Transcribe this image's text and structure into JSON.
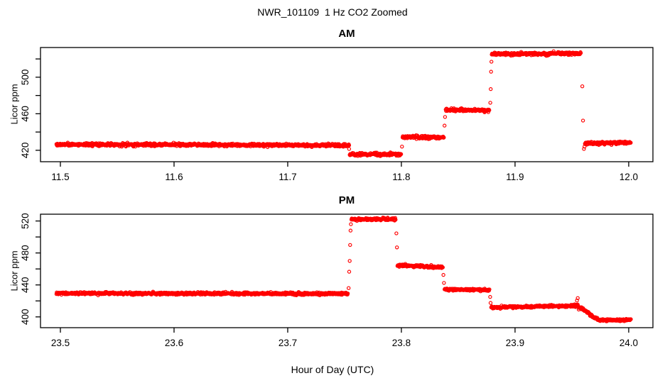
{
  "chart_data": {
    "type": "scatter",
    "title": "NWR_101109  1 Hz CO2 Zoomed",
    "xlabel": "Hour of Day (UTC)",
    "ylabel": "Licor ppm",
    "marker": "open-circle",
    "marker_radius_px": 2.1,
    "point_color": "#FF0000",
    "axis_color": "#000000",
    "sample_rate_hz": 1,
    "noise_sd_ppm": 0.75,
    "panels": [
      {
        "id": "AM",
        "title": "AM",
        "xlim": [
          11.4825,
          12.0213
        ],
        "ylim": [
          407.5,
          532.5
        ],
        "xticks": [
          {
            "v": 11.5,
            "label": "11.5"
          },
          {
            "v": 11.6,
            "label": "11.6"
          },
          {
            "v": 11.7,
            "label": "11.7"
          },
          {
            "v": 11.8,
            "label": "11.8"
          },
          {
            "v": 11.9,
            "label": "11.9"
          },
          {
            "v": 12.0,
            "label": "12.0"
          }
        ],
        "yticks": [
          {
            "v": 420,
            "label": "420"
          },
          {
            "v": 440
          },
          {
            "v": 460,
            "label": "460"
          },
          {
            "v": 480
          },
          {
            "v": 500,
            "label": "500"
          },
          {
            "v": 520
          }
        ],
        "segments": [
          {
            "x0": 11.4965,
            "x1": 11.754,
            "y0": 426.5,
            "y1": 425.5
          },
          {
            "x0": 11.7545,
            "x1": 11.8,
            "y0": 415.5,
            "y1": 415.5
          },
          {
            "x0": 11.801,
            "x1": 11.8375,
            "y0": 434.5,
            "y1": 434.0
          },
          {
            "x0": 11.839,
            "x1": 11.8775,
            "y0": 464.5,
            "y1": 463.5
          },
          {
            "x0": 11.8795,
            "x1": 11.958,
            "y0": 525.5,
            "y1": 526.0
          },
          {
            "x0": 11.9615,
            "x1": 12.002,
            "y0": 427.5,
            "y1": 428.5
          }
        ],
        "transition_points": [
          [
            11.754,
            421.5
          ],
          [
            11.8005,
            424.0
          ],
          [
            11.838,
            447.0
          ],
          [
            11.8384,
            456.5
          ],
          [
            11.8782,
            472.0
          ],
          [
            11.8786,
            487.0
          ],
          [
            11.8789,
            506.0
          ],
          [
            11.8792,
            517.0
          ],
          [
            11.9592,
            490.0
          ],
          [
            11.9598,
            452.5
          ],
          [
            11.9606,
            421.5
          ],
          [
            11.9611,
            424.0
          ]
        ]
      },
      {
        "id": "PM",
        "title": "PM",
        "xlim": [
          23.4825,
          24.0213
        ],
        "ylim": [
          386.5,
          528.5
        ],
        "xticks": [
          {
            "v": 23.5,
            "label": "23.5"
          },
          {
            "v": 23.6,
            "label": "23.6"
          },
          {
            "v": 23.7,
            "label": "23.7"
          },
          {
            "v": 23.8,
            "label": "23.8"
          },
          {
            "v": 23.9,
            "label": "23.9"
          },
          {
            "v": 24.0,
            "label": "24.0"
          }
        ],
        "yticks": [
          {
            "v": 400,
            "label": "400"
          },
          {
            "v": 420
          },
          {
            "v": 440,
            "label": "440"
          },
          {
            "v": 460
          },
          {
            "v": 480,
            "label": "480"
          },
          {
            "v": 500
          },
          {
            "v": 520,
            "label": "520"
          }
        ],
        "segments": [
          {
            "x0": 23.4965,
            "x1": 23.753,
            "y0": 429.5,
            "y1": 429.0
          },
          {
            "x0": 23.756,
            "x1": 23.795,
            "y0": 522.0,
            "y1": 522.5
          },
          {
            "x0": 23.7965,
            "x1": 23.8365,
            "y0": 464.5,
            "y1": 462.0
          },
          {
            "x0": 23.838,
            "x1": 23.8775,
            "y0": 434.5,
            "y1": 433.5
          },
          {
            "x0": 23.879,
            "x1": 23.9555,
            "y0": 412.0,
            "y1": 414.0
          },
          {
            "x0": 23.956,
            "x1": 23.9745,
            "y0": 411.5,
            "y1": 396.5,
            "shape": "smooth"
          },
          {
            "x0": 23.975,
            "x1": 24.002,
            "y0": 396.0,
            "y1": 396.0
          }
        ],
        "transition_points": [
          [
            23.7536,
            436.0
          ],
          [
            23.7541,
            456.5
          ],
          [
            23.7545,
            470.0
          ],
          [
            23.7549,
            490.0
          ],
          [
            23.7553,
            508.0
          ],
          [
            23.7556,
            516.0
          ],
          [
            23.7956,
            504.5
          ],
          [
            23.7961,
            487.0
          ],
          [
            23.837,
            452.5
          ],
          [
            23.8375,
            442.5
          ],
          [
            23.8781,
            425.0
          ],
          [
            23.8785,
            417.5
          ],
          [
            23.9545,
            420.5
          ],
          [
            23.9552,
            423.5
          ]
        ]
      }
    ]
  }
}
